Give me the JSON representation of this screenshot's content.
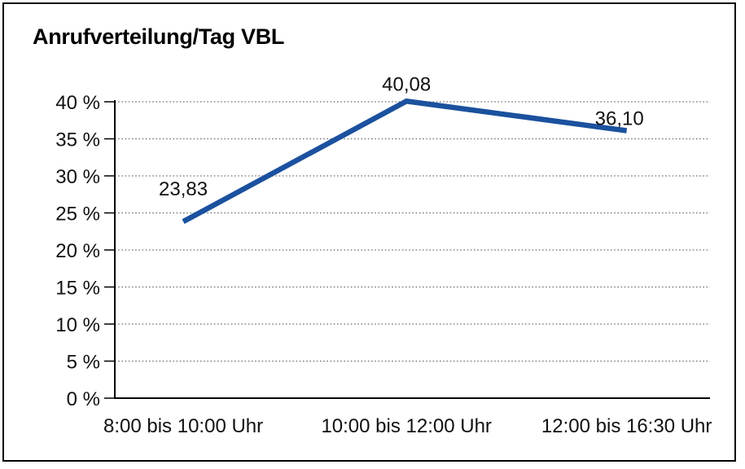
{
  "frame": {
    "background": "#ffffff",
    "border_color": "#000000"
  },
  "chart_data": {
    "type": "line",
    "title": "Anrufverteilung/Tag VBL",
    "categories": [
      "8:00 bis 10:00 Uhr",
      "10:00 bis 12:00 Uhr",
      "12:00 bis 16:30 Uhr"
    ],
    "series": [
      {
        "name": "Anrufverteilung/Tag VBL",
        "values": [
          23.83,
          40.08,
          36.1
        ],
        "value_labels": [
          "23,83",
          "40,08",
          "36,10"
        ],
        "color": "#1b519e"
      }
    ],
    "xlabel": "",
    "ylabel": "",
    "ylim": [
      0,
      40
    ],
    "ytick_step": 5,
    "ytick_labels": [
      "0 %",
      "5 %",
      "10 %",
      "15 %",
      "20 %",
      "25 %",
      "30 %",
      "35 %",
      "40 %"
    ],
    "grid": "horizontal-dotted",
    "legend": "none",
    "axis_color": "#000000",
    "grid_color": "#6f6f6f",
    "text_color": "#111111"
  }
}
